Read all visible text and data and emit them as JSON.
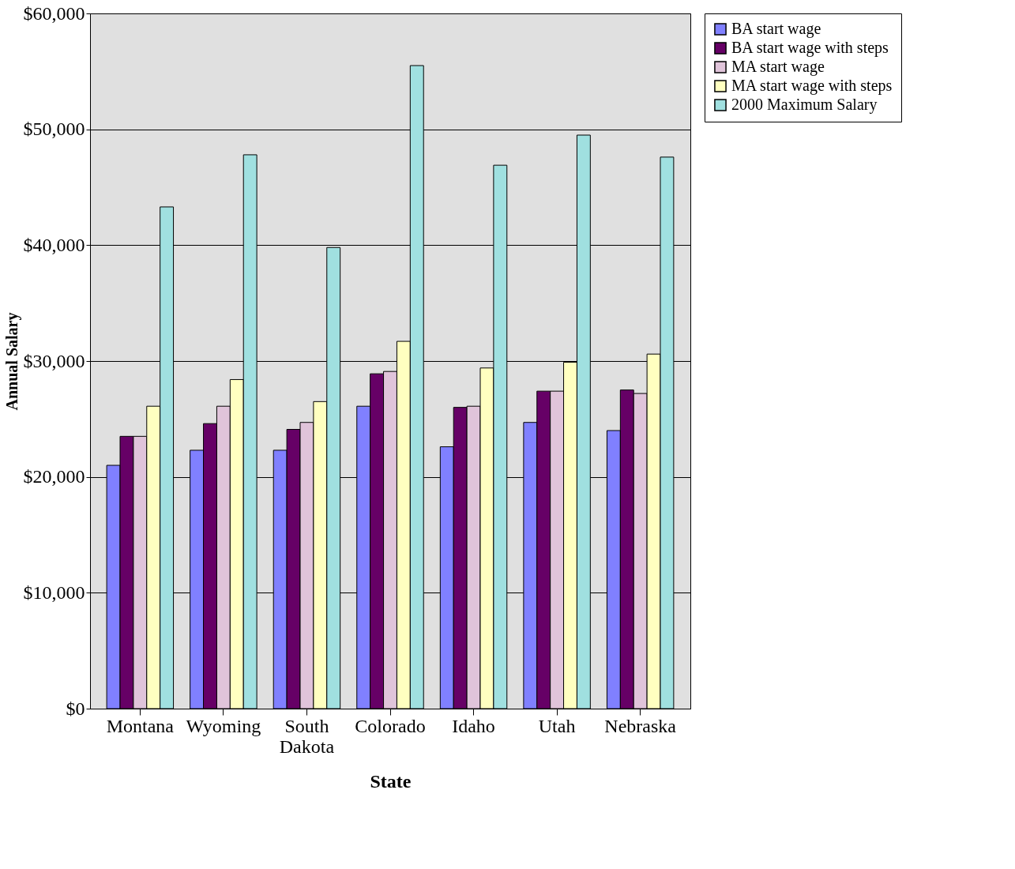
{
  "chart_data": {
    "type": "bar",
    "xlabel": "State",
    "ylabel": "Annual Salary",
    "categories": [
      "Montana",
      "Wyoming",
      "South Dakota",
      "Colorado",
      "Idaho",
      "Utah",
      "Nebraska"
    ],
    "series": [
      {
        "name": "BA start wage",
        "color": "#8080ff",
        "values": [
          21000,
          22300,
          22300,
          26100,
          22600,
          24700,
          24000
        ]
      },
      {
        "name": "BA start wage with steps",
        "color": "#660066",
        "values": [
          23500,
          24600,
          24100,
          28900,
          26000,
          27400,
          27500
        ]
      },
      {
        "name": "MA start wage",
        "color": "#e0c4da",
        "values": [
          23500,
          26100,
          24700,
          29100,
          26100,
          27400,
          27200
        ]
      },
      {
        "name": "MA start wage with steps",
        "color": "#ffffc0",
        "values": [
          26100,
          28400,
          26500,
          31700,
          29400,
          29900,
          30600
        ]
      },
      {
        "name": "2000 Maximum Salary",
        "color": "#a0e0e0",
        "values": [
          43300,
          47800,
          39800,
          55500,
          46900,
          49500,
          47600
        ]
      }
    ],
    "ylim": [
      0,
      60000
    ],
    "yticks": [
      {
        "value": 0,
        "label": "$0"
      },
      {
        "value": 10000,
        "label": "$10,000"
      },
      {
        "value": 20000,
        "label": "$20,000"
      },
      {
        "value": 30000,
        "label": "$30,000"
      },
      {
        "value": 40000,
        "label": "$40,000"
      },
      {
        "value": 50000,
        "label": "$50,000"
      },
      {
        "value": 60000,
        "label": "$60,000"
      }
    ],
    "grid": "y",
    "legend": "right"
  }
}
